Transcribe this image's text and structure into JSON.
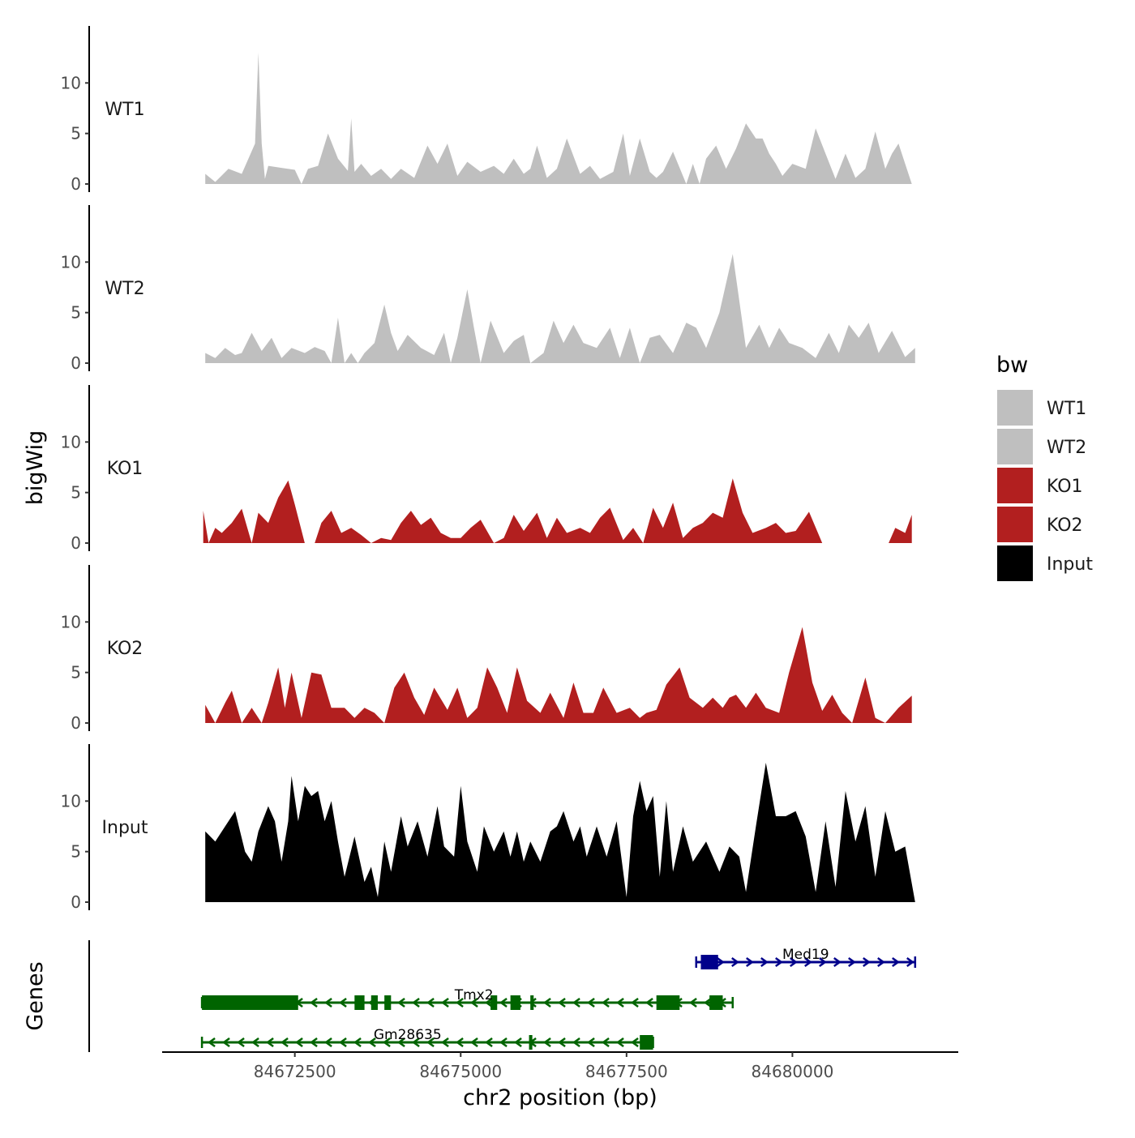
{
  "chart_data": {
    "type": "area",
    "x_axis": {
      "title": "chr2 position (bp)",
      "range": [
        84670500,
        84682500
      ],
      "ticks": [
        84672500,
        84675000,
        84677500,
        84680000
      ],
      "tick_labels": [
        "84672500",
        "84675000",
        "84677500",
        "84680000"
      ]
    },
    "y_axis": {
      "title": "bigWig",
      "range": [
        0,
        15
      ],
      "ticks": [
        0,
        5,
        10
      ],
      "tick_labels": [
        "0",
        "5",
        "10"
      ]
    },
    "genes_axis_title": "Genes",
    "legend": {
      "title": "bw",
      "position": "right",
      "entries": [
        {
          "label": "WT1",
          "color": "#bfbfbf"
        },
        {
          "label": "WT2",
          "color": "#bfbfbf"
        },
        {
          "label": "KO1",
          "color": "#b21f1f"
        },
        {
          "label": "KO2",
          "color": "#b21f1f"
        },
        {
          "label": "Input",
          "color": "#000000"
        }
      ]
    },
    "series": [
      {
        "name": "WT1",
        "color": "#bfbfbf",
        "x": [
          84671150,
          84671300,
          84671500,
          84671700,
          84671900,
          84671950,
          84672000,
          84672050,
          84672100,
          84672300,
          84672500,
          84672600,
          84672700,
          84672850,
          84673000,
          84673150,
          84673300,
          84673350,
          84673400,
          84673500,
          84673650,
          84673800,
          84673950,
          84674100,
          84674300,
          84674500,
          84674650,
          84674800,
          84674950,
          84675100,
          84675300,
          84675500,
          84675650,
          84675800,
          84675950,
          84676050,
          84676150,
          84676300,
          84676450,
          84676600,
          84676800,
          84676950,
          84677100,
          84677300,
          84677450,
          84677550,
          84677700,
          84677850,
          84677950,
          84678050,
          84678200,
          84678400,
          84678500,
          84678600,
          84678700,
          84678850,
          84679000,
          84679150,
          84679300,
          84679450,
          84679550,
          84679650,
          84679750,
          84679850,
          84680000,
          84680200,
          84680350,
          84680500,
          84680650,
          84680800,
          84680950,
          84681100,
          84681250,
          84681400,
          84681500,
          84681600,
          84681700,
          84681800
        ],
        "values": [
          1.0,
          0.2,
          1.5,
          1.0,
          4.0,
          13.0,
          4.0,
          0.5,
          1.8,
          1.6,
          1.4,
          0.0,
          1.5,
          1.8,
          5.0,
          2.5,
          1.3,
          6.5,
          1.2,
          2.0,
          0.8,
          1.5,
          0.5,
          1.5,
          0.6,
          3.8,
          2.0,
          4.0,
          0.8,
          2.2,
          1.2,
          1.8,
          1.0,
          2.5,
          1.0,
          1.5,
          3.8,
          0.6,
          1.5,
          4.5,
          1.0,
          1.8,
          0.5,
          1.2,
          5.0,
          0.8,
          4.5,
          1.2,
          0.6,
          1.2,
          3.2,
          0.0,
          2.0,
          0.0,
          2.5,
          3.8,
          1.5,
          3.5,
          6.0,
          4.5,
          4.5,
          3.0,
          2.0,
          0.8,
          2.0,
          1.5,
          5.5,
          3.0,
          0.5,
          3.0,
          0.6,
          1.5,
          5.2,
          1.5,
          3.0,
          4.0,
          2.0,
          0.0
        ]
      },
      {
        "name": "WT2",
        "color": "#bfbfbf",
        "x": [
          84671150,
          84671300,
          84671450,
          84671600,
          84671700,
          84671850,
          84672000,
          84672150,
          84672300,
          84672450,
          84672650,
          84672800,
          84672950,
          84673050,
          84673150,
          84673250,
          84673350,
          84673450,
          84673550,
          84673700,
          84673850,
          84673950,
          84674050,
          84674200,
          84674400,
          84674600,
          84674750,
          84674850,
          84674950,
          84675100,
          84675200,
          84675300,
          84675450,
          84675650,
          84675800,
          84675950,
          84676050,
          84676250,
          84676400,
          84676550,
          84676700,
          84676850,
          84677050,
          84677250,
          84677400,
          84677550,
          84677700,
          84677850,
          84678000,
          84678200,
          84678400,
          84678550,
          84678700,
          84678900,
          84679100,
          84679300,
          84679500,
          84679650,
          84679800,
          84679950,
          84680150,
          84680350,
          84680550,
          84680700,
          84680850,
          84681000,
          84681150,
          84681300,
          84681500,
          84681700,
          84681850
        ],
        "values": [
          1.0,
          0.5,
          1.5,
          0.8,
          1.0,
          3.0,
          1.2,
          2.5,
          0.5,
          1.5,
          1.0,
          1.6,
          1.2,
          0.0,
          4.5,
          0.0,
          1.0,
          0.0,
          1.0,
          2.0,
          5.8,
          3.0,
          1.2,
          2.8,
          1.5,
          0.8,
          3.0,
          0.0,
          2.5,
          7.3,
          3.5,
          0.0,
          4.2,
          1.0,
          2.2,
          2.8,
          0.0,
          1.0,
          4.2,
          2.0,
          3.8,
          2.0,
          1.5,
          3.5,
          0.5,
          3.5,
          0.0,
          2.5,
          2.8,
          1.0,
          4.0,
          3.5,
          1.5,
          5.0,
          10.8,
          1.5,
          3.8,
          1.5,
          3.5,
          2.0,
          1.5,
          0.5,
          3.0,
          1.0,
          3.8,
          2.5,
          4.0,
          1.0,
          3.2,
          0.6,
          1.5
        ]
      },
      {
        "name": "KO1",
        "color": "#b21f1f",
        "x": [
          84671120,
          84671200,
          84671300,
          84671400,
          84671550,
          84671700,
          84671850,
          84671950,
          84672100,
          84672250,
          84672400,
          84672500,
          84672650,
          84672800,
          84672900,
          84673050,
          84673200,
          84673350,
          84673500,
          84673650,
          84673800,
          84673950,
          84674100,
          84674250,
          84674400,
          84674550,
          84674700,
          84674850,
          84675000,
          84675150,
          84675300,
          84675500,
          84675650,
          84675800,
          84675950,
          84676150,
          84676300,
          84676450,
          84676600,
          84676800,
          84676950,
          84677100,
          84677250,
          84677450,
          84677600,
          84677750,
          84677900,
          84678050,
          84678200,
          84678350,
          84678500,
          84678650,
          84678800,
          84678950,
          84679100,
          84679250,
          84679400,
          84679600,
          84679750,
          84679900,
          84680050,
          84680250,
          84680450,
          84680600,
          84680750,
          84680900,
          84681050,
          84681200,
          84681350,
          84681450,
          84681550,
          84681700,
          84681800
        ],
        "values": [
          3.2,
          0.0,
          1.5,
          1.0,
          2.0,
          3.4,
          0.0,
          3.0,
          2.0,
          4.5,
          6.2,
          3.8,
          0.0,
          0.0,
          2.0,
          3.2,
          1.0,
          1.5,
          0.8,
          0.0,
          0.5,
          0.3,
          2.0,
          3.2,
          1.8,
          2.5,
          1.0,
          0.5,
          0.5,
          1.5,
          2.3,
          0.0,
          0.5,
          2.8,
          1.2,
          3.0,
          0.5,
          2.5,
          1.0,
          1.5,
          1.0,
          2.5,
          3.5,
          0.3,
          1.5,
          0.0,
          3.5,
          1.5,
          4.0,
          0.5,
          1.5,
          2.0,
          3.0,
          2.5,
          6.4,
          3.0,
          1.0,
          1.5,
          2.0,
          1.0,
          1.2,
          3.1,
          0.0,
          0.0,
          0.0,
          0.0,
          0.0,
          0.0,
          0.0,
          0.0,
          1.5,
          1.0,
          2.8
        ]
      },
      {
        "name": "KO2",
        "color": "#b21f1f",
        "x": [
          84671150,
          84671300,
          84671450,
          84671550,
          84671700,
          84671850,
          84672000,
          84672100,
          84672250,
          84672350,
          84672450,
          84672600,
          84672750,
          84672900,
          84673050,
          84673250,
          84673400,
          84673550,
          84673700,
          84673850,
          84674000,
          84674150,
          84674300,
          84674450,
          84674600,
          84674800,
          84674950,
          84675100,
          84675250,
          84675400,
          84675550,
          84675700,
          84675850,
          84676000,
          84676200,
          84676350,
          84676550,
          84676700,
          84676850,
          84677000,
          84677150,
          84677350,
          84677550,
          84677700,
          84677800,
          84677950,
          84678100,
          84678300,
          84678450,
          84678650,
          84678800,
          84678950,
          84679050,
          84679150,
          84679300,
          84679450,
          84679600,
          84679800,
          84679950,
          84680150,
          84680300,
          84680450,
          84680600,
          84680750,
          84680900,
          84681100,
          84681250,
          84681400,
          84681600,
          84681800
        ],
        "values": [
          1.8,
          0.0,
          2.0,
          3.2,
          0.0,
          1.5,
          0.0,
          2.0,
          5.5,
          1.5,
          5.0,
          0.5,
          5.0,
          4.8,
          1.5,
          1.5,
          0.5,
          1.5,
          1.0,
          0.0,
          3.5,
          5.0,
          2.5,
          0.8,
          3.5,
          1.3,
          3.5,
          0.5,
          1.5,
          5.5,
          3.5,
          1.0,
          5.5,
          2.2,
          1.0,
          3.0,
          0.5,
          4.0,
          1.0,
          1.0,
          3.5,
          1.0,
          1.5,
          0.5,
          1.0,
          1.3,
          3.8,
          5.5,
          2.5,
          1.5,
          2.5,
          1.5,
          2.5,
          2.8,
          1.5,
          3.0,
          1.5,
          1.0,
          5.0,
          9.5,
          4.0,
          1.2,
          2.8,
          1.0,
          0.0,
          4.5,
          0.5,
          0.0,
          1.5,
          2.7
        ]
      },
      {
        "name": "Input",
        "color": "#000000",
        "x": [
          84671150,
          84671300,
          84671450,
          84671600,
          84671750,
          84671850,
          84671950,
          84672100,
          84672200,
          84672300,
          84672400,
          84672450,
          84672550,
          84672650,
          84672750,
          84672850,
          84672950,
          84673050,
          84673150,
          84673250,
          84673400,
          84673550,
          84673650,
          84673750,
          84673850,
          84673950,
          84674100,
          84674200,
          84674350,
          84674500,
          84674650,
          84674750,
          84674900,
          84675000,
          84675100,
          84675250,
          84675350,
          84675500,
          84675650,
          84675750,
          84675850,
          84675950,
          84676050,
          84676200,
          84676350,
          84676450,
          84676550,
          84676700,
          84676800,
          84676900,
          84677050,
          84677200,
          84677350,
          84677500,
          84677600,
          84677700,
          84677800,
          84677900,
          84678000,
          84678100,
          84678200,
          84678350,
          84678500,
          84678700,
          84678900,
          84679050,
          84679200,
          84679300,
          84679450,
          84679600,
          84679750,
          84679900,
          84680050,
          84680200,
          84680350,
          84680500,
          84680650,
          84680800,
          84680950,
          84681100,
          84681250,
          84681400,
          84681550,
          84681700,
          84681850
        ],
        "values": [
          7.0,
          6.0,
          7.5,
          9.0,
          5.0,
          4.0,
          7.0,
          9.5,
          8.0,
          4.0,
          8.0,
          12.5,
          8.0,
          11.5,
          10.5,
          11.0,
          8.0,
          10.0,
          6.0,
          2.5,
          6.5,
          2.0,
          3.5,
          0.5,
          6.0,
          3.0,
          8.5,
          5.5,
          8.0,
          4.5,
          9.5,
          5.5,
          4.5,
          11.5,
          6.0,
          3.0,
          7.5,
          5.0,
          7.0,
          4.5,
          7.0,
          4.0,
          6.0,
          4.0,
          7.0,
          7.5,
          9.0,
          6.0,
          7.5,
          4.5,
          7.5,
          4.5,
          8.0,
          0.5,
          8.5,
          12.0,
          9.0,
          10.5,
          2.5,
          10.0,
          3.0,
          7.5,
          4.0,
          6.0,
          3.0,
          5.5,
          4.5,
          1.0,
          7.5,
          13.8,
          8.5,
          8.5,
          9.0,
          6.5,
          1.0,
          8.0,
          1.5,
          11.0,
          6.0,
          9.5,
          2.5,
          9.0,
          5.0,
          5.5,
          0.0
        ]
      }
    ],
    "genes": [
      {
        "name": "Med19",
        "strand": "+",
        "color": "#00008b",
        "start": 84678550,
        "end": 84681850,
        "label_at": 84680200,
        "exons": [
          [
            84678620,
            84678880
          ]
        ]
      },
      {
        "name": "Tmx2",
        "strand": "-",
        "color": "#006400",
        "start": 84671100,
        "end": 84679100,
        "label_at": 84675200,
        "exons": [
          [
            84671100,
            84672550
          ],
          [
            84673400,
            84673550
          ],
          [
            84673650,
            84673750
          ],
          [
            84673850,
            84673950
          ],
          [
            84675450,
            84675550
          ],
          [
            84675750,
            84675900
          ],
          [
            84676050,
            84676100
          ],
          [
            84677950,
            84678300
          ],
          [
            84678750,
            84678950
          ]
        ]
      },
      {
        "name": "Gm28635",
        "strand": "-",
        "color": "#006400",
        "start": 84671100,
        "end": 84677900,
        "label_at": 84674200,
        "exons": [
          [
            84676030,
            84676080
          ],
          [
            84677700,
            84677900
          ]
        ]
      }
    ]
  }
}
